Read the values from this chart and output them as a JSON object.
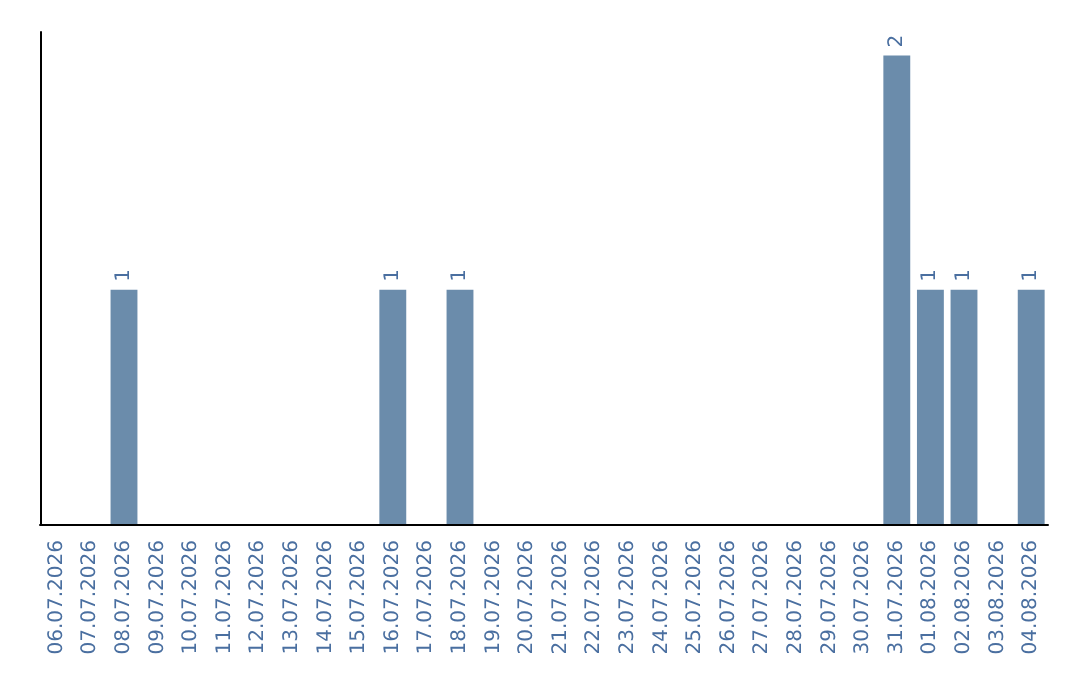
{
  "chart_data": {
    "type": "bar",
    "categories": [
      "06.07.2026",
      "07.07.2026",
      "08.07.2026",
      "09.07.2026",
      "10.07.2026",
      "11.07.2026",
      "12.07.2026",
      "13.07.2026",
      "14.07.2026",
      "15.07.2026",
      "16.07.2026",
      "17.07.2026",
      "18.07.2026",
      "19.07.2026",
      "20.07.2026",
      "21.07.2026",
      "22.07.2026",
      "23.07.2026",
      "24.07.2026",
      "25.07.2026",
      "26.07.2026",
      "27.07.2026",
      "28.07.2026",
      "29.07.2026",
      "30.07.2026",
      "31.07.2026",
      "01.08.2026",
      "02.08.2026",
      "03.08.2026",
      "04.08.2026"
    ],
    "values": [
      0,
      0,
      1,
      0,
      0,
      0,
      0,
      0,
      0,
      0,
      1,
      0,
      1,
      0,
      0,
      0,
      0,
      0,
      0,
      0,
      0,
      0,
      0,
      0,
      0,
      2,
      1,
      1,
      0,
      1
    ],
    "value_labels": [
      null,
      null,
      "1",
      null,
      null,
      null,
      null,
      null,
      null,
      null,
      "1",
      null,
      "1",
      null,
      null,
      null,
      null,
      null,
      null,
      null,
      null,
      null,
      null,
      null,
      null,
      "2",
      "1",
      "1",
      null,
      "1"
    ],
    "color": "#6b8cab",
    "ylim": [
      0,
      2.1
    ],
    "tick_labels": "x"
  }
}
